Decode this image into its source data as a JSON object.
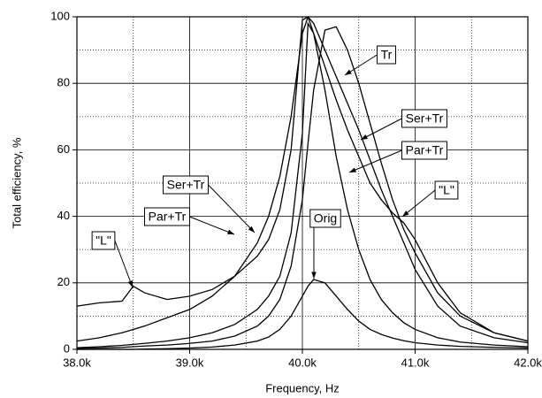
{
  "chart_data": {
    "type": "line",
    "x_label": "Frequency, Hz",
    "y_label": "Total efficiency, %",
    "x": [
      38000,
      38200,
      38400,
      38500,
      38600,
      38800,
      39000,
      39200,
      39400,
      39600,
      39700,
      39800,
      39900,
      40000,
      40050,
      40100,
      40200,
      40300,
      40400,
      40500,
      40600,
      40700,
      40800,
      40900,
      41000,
      41200,
      41400,
      41700,
      42000
    ],
    "series": [
      {
        "name": "Tr",
        "color": "#000000",
        "values": [
          0.3,
          0.4,
          0.6,
          0.8,
          1,
          1.3,
          1.8,
          2.5,
          4,
          7,
          10,
          15,
          25,
          45,
          62,
          78,
          96,
          97,
          90,
          80,
          68,
          56,
          45,
          36,
          29,
          17,
          10,
          5,
          2.5
        ]
      },
      {
        "name": "Ser+Tr",
        "color": "#000000",
        "values": [
          2.5,
          3.5,
          5,
          6,
          7,
          9.5,
          12,
          16,
          22,
          32,
          40,
          52,
          70,
          95,
          100,
          98,
          90,
          82,
          74,
          66,
          57,
          48,
          40,
          32,
          24,
          13,
          7,
          3.5,
          2
        ]
      },
      {
        "name": "Par+Tr",
        "color": "#000000",
        "values": [
          0.5,
          0.8,
          1.2,
          1.5,
          1.8,
          2.5,
          3.5,
          5,
          7.5,
          12,
          16,
          22,
          35,
          65,
          98,
          95,
          78,
          58,
          42,
          30,
          21,
          15,
          11,
          8,
          6,
          3.5,
          2.2,
          1.3,
          0.8
        ]
      },
      {
        "name": "\"L\"",
        "color": "#000000",
        "values": [
          13,
          14,
          14.5,
          19,
          17,
          15,
          16,
          18,
          22,
          28,
          33,
          42,
          60,
          99,
          100,
          95,
          85,
          75,
          66,
          58,
          50,
          45,
          41,
          38,
          33,
          20,
          11,
          5,
          2.5
        ]
      },
      {
        "name": "Orig",
        "color": "#000000",
        "values": [
          0,
          0,
          0,
          0,
          0.1,
          0.2,
          0.4,
          0.7,
          1.3,
          2.5,
          3.7,
          6,
          10,
          16,
          19,
          21,
          20,
          16,
          12,
          8.5,
          6,
          4.5,
          3.4,
          2.6,
          2,
          1.3,
          0.9,
          0.6,
          0.4
        ]
      }
    ],
    "xlim": [
      38000,
      42000
    ],
    "xticks": [
      {
        "value": 38000,
        "label": "38.0k"
      },
      {
        "value": 39000,
        "label": "39.0k"
      },
      {
        "value": 40000,
        "label": "40.0k"
      },
      {
        "value": 41000,
        "label": "41.0k"
      },
      {
        "value": 42000,
        "label": "42.0k"
      }
    ],
    "ylim": [
      0,
      100
    ],
    "yticks": [
      0,
      20,
      40,
      60,
      80,
      100
    ],
    "grid": true
  }
}
